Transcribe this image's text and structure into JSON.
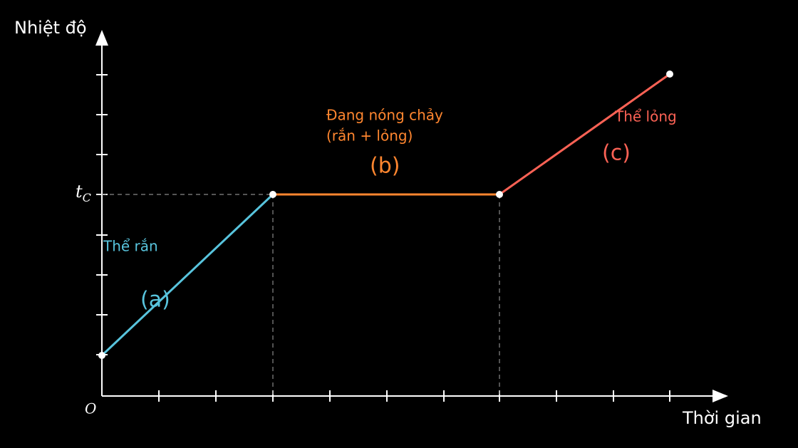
{
  "axes": {
    "y_label": "Nhiệt độ",
    "x_label": "Thời gian",
    "origin": "O",
    "melting_temp": {
      "main": "t",
      "sub": "C"
    }
  },
  "segments": [
    {
      "name": "Thể rắn",
      "label": "(a)"
    },
    {
      "name": "Đang nóng chảy",
      "name_line2": "(rắn + lỏng)",
      "label": "(b)"
    },
    {
      "name": "Thể lỏng",
      "label": "(c)"
    }
  ]
}
